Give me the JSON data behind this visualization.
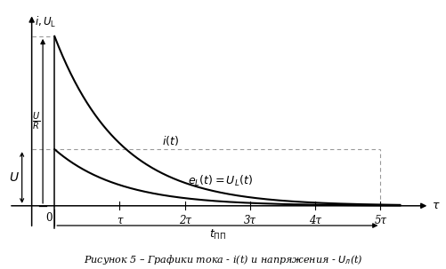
{
  "background_color": "#ffffff",
  "line_color": "#000000",
  "dot_line_color": "#999999",
  "i_peak": 3.0,
  "eL_peak": 1.0,
  "tau": 1.0,
  "xlim": [
    -0.7,
    5.8
  ],
  "ylim": [
    -0.5,
    3.5
  ],
  "y_axis_x": -0.35,
  "tau_ticks": [
    1,
    2,
    3,
    4,
    5
  ],
  "tau_tick_labels": [
    "τ",
    "2τ",
    "3τ",
    "4τ",
    "5τ"
  ],
  "caption": "Рисунок 5 – Графики тока - i(t) и напряжения - Uₗ(t)"
}
